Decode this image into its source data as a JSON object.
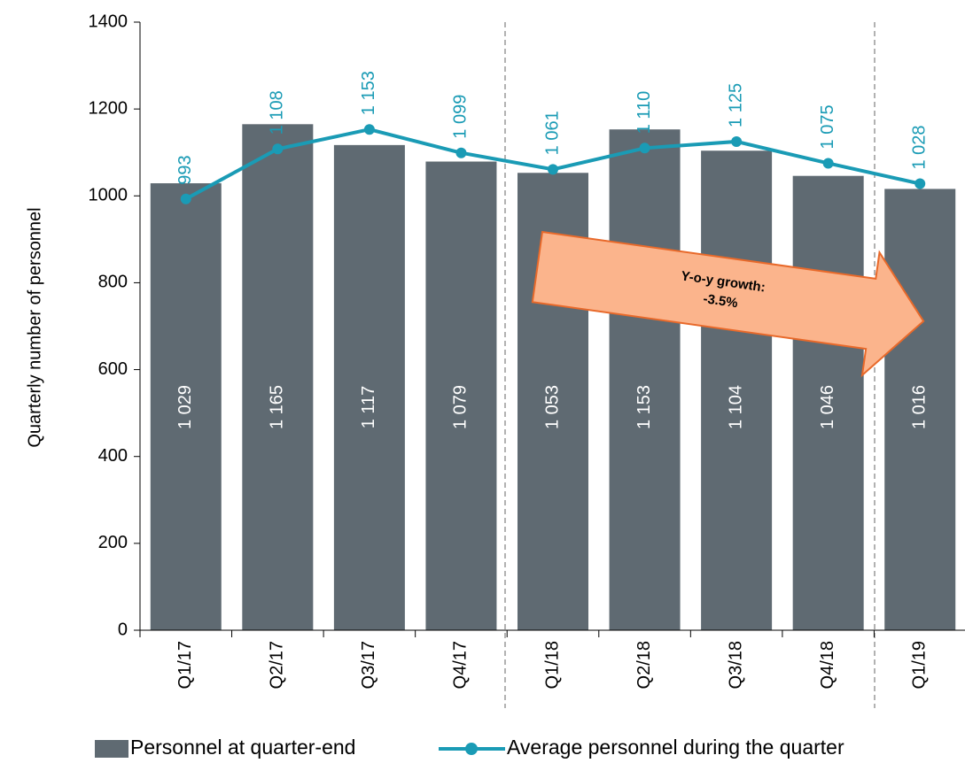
{
  "chart_data": {
    "type": "bar_line",
    "y_axis_label": "Quarterly number of personnel",
    "categories": [
      "Q1/17",
      "Q2/17",
      "Q3/17",
      "Q4/17",
      "Q1/18",
      "Q2/18",
      "Q3/18",
      "Q4/18",
      "Q1/19"
    ],
    "series": [
      {
        "name": "Personnel at quarter-end",
        "type": "bar",
        "color": "#5f6a72",
        "values": [
          1029,
          1165,
          1117,
          1079,
          1053,
          1153,
          1104,
          1046,
          1016
        ],
        "value_labels": [
          "1 029",
          "1 165",
          "1 117",
          "1 079",
          "1 053",
          "1 153",
          "1 104",
          "1 046",
          "1 016"
        ]
      },
      {
        "name": "Average personnel during the quarter",
        "type": "line",
        "color": "#1a9bb5",
        "values": [
          993,
          1108,
          1153,
          1099,
          1061,
          1110,
          1125,
          1075,
          1028
        ],
        "value_labels": [
          "993",
          "1 108",
          "1 153",
          "1 099",
          "1 061",
          "1 110",
          "1 125",
          "1 075",
          "1 028"
        ]
      }
    ],
    "ylim": [
      0,
      1400
    ],
    "yticks": [
      0,
      200,
      400,
      600,
      800,
      1000,
      1200,
      1400
    ],
    "annotation": [
      "Y-o-y growth:",
      "-3.5%"
    ],
    "legend": "bottom"
  }
}
